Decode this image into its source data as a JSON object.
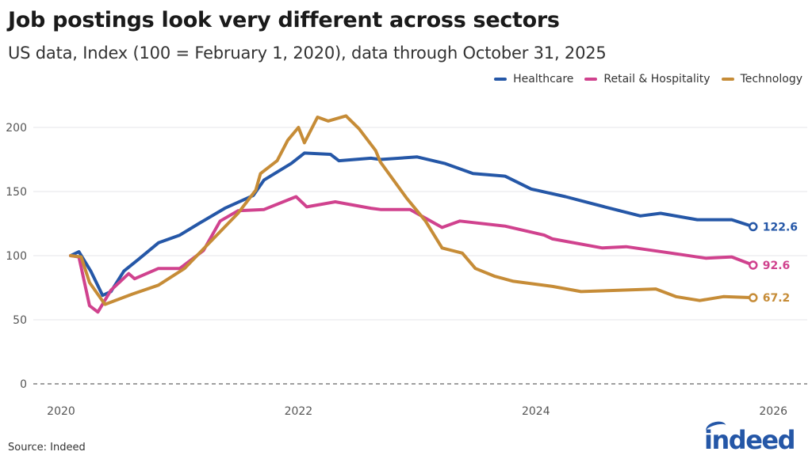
{
  "header": {
    "title": "Job postings look very different across sectors",
    "subtitle": "US data, Index (100 = February 1, 2020), data through October 31, 2025"
  },
  "footer": {
    "source": "Source: Indeed",
    "logo_text": "indeed"
  },
  "chart_data": {
    "type": "line",
    "title": "Job postings look very different across sectors",
    "subtitle": "US data, Index (100 = February 1, 2020), data through October 31, 2025",
    "xlabel": "",
    "ylabel": "",
    "xlim": [
      2020,
      2026
    ],
    "ylim": [
      0,
      215
    ],
    "x_ticks": [
      2020,
      2022,
      2024,
      2026
    ],
    "x_tick_labels": [
      "2020",
      "2022",
      "2024",
      "2026"
    ],
    "y_ticks": [
      0,
      50,
      100,
      150,
      200
    ],
    "y_tick_labels": [
      "0",
      "50",
      "100",
      "150",
      "200"
    ],
    "grid": true,
    "zero_line": "dashed",
    "legend_position": "top-right",
    "series": [
      {
        "name": "Healthcare",
        "color": "#2557a7",
        "end_label": "122.6",
        "points": [
          [
            2020.08,
            100
          ],
          [
            2020.15,
            103
          ],
          [
            2020.25,
            88
          ],
          [
            2020.35,
            69
          ],
          [
            2020.42,
            72
          ],
          [
            2020.53,
            88
          ],
          [
            2020.65,
            97
          ],
          [
            2020.82,
            110
          ],
          [
            2021.0,
            116
          ],
          [
            2021.16,
            125
          ],
          [
            2021.38,
            137
          ],
          [
            2021.62,
            147
          ],
          [
            2021.71,
            159
          ],
          [
            2021.94,
            172
          ],
          [
            2022.05,
            180
          ],
          [
            2022.27,
            179
          ],
          [
            2022.34,
            174
          ],
          [
            2022.61,
            176
          ],
          [
            2022.69,
            175
          ],
          [
            2023.0,
            177
          ],
          [
            2023.23,
            172
          ],
          [
            2023.47,
            164
          ],
          [
            2023.74,
            162
          ],
          [
            2023.96,
            152
          ],
          [
            2024.25,
            146
          ],
          [
            2024.58,
            138
          ],
          [
            2024.88,
            131
          ],
          [
            2025.05,
            133
          ],
          [
            2025.36,
            128
          ],
          [
            2025.65,
            128
          ],
          [
            2025.83,
            122.6
          ]
        ]
      },
      {
        "name": "Retail & Hospitality",
        "color": "#d0428e",
        "end_label": "92.6",
        "points": [
          [
            2020.08,
            100
          ],
          [
            2020.15,
            99
          ],
          [
            2020.24,
            61
          ],
          [
            2020.31,
            56
          ],
          [
            2020.42,
            73
          ],
          [
            2020.57,
            86
          ],
          [
            2020.62,
            82
          ],
          [
            2020.82,
            90
          ],
          [
            2021.0,
            90
          ],
          [
            2021.2,
            104
          ],
          [
            2021.34,
            127
          ],
          [
            2021.49,
            135
          ],
          [
            2021.71,
            136
          ],
          [
            2021.98,
            146
          ],
          [
            2022.07,
            138
          ],
          [
            2022.31,
            142
          ],
          [
            2022.61,
            137
          ],
          [
            2022.69,
            136
          ],
          [
            2022.94,
            136
          ],
          [
            2023.21,
            122
          ],
          [
            2023.36,
            127
          ],
          [
            2023.74,
            123
          ],
          [
            2024.07,
            116
          ],
          [
            2024.14,
            113
          ],
          [
            2024.56,
            106
          ],
          [
            2024.76,
            107
          ],
          [
            2025.14,
            102
          ],
          [
            2025.43,
            98
          ],
          [
            2025.65,
            99
          ],
          [
            2025.83,
            92.6
          ]
        ]
      },
      {
        "name": "Technology",
        "color": "#c68c37",
        "end_label": "67.2",
        "points": [
          [
            2020.08,
            100
          ],
          [
            2020.17,
            99
          ],
          [
            2020.24,
            79
          ],
          [
            2020.37,
            62
          ],
          [
            2020.6,
            70
          ],
          [
            2020.82,
            77
          ],
          [
            2021.04,
            90
          ],
          [
            2021.27,
            112
          ],
          [
            2021.49,
            133
          ],
          [
            2021.64,
            151
          ],
          [
            2021.68,
            164
          ],
          [
            2021.82,
            174
          ],
          [
            2021.91,
            190
          ],
          [
            2022.0,
            200
          ],
          [
            2022.05,
            188
          ],
          [
            2022.16,
            208
          ],
          [
            2022.25,
            205
          ],
          [
            2022.4,
            209
          ],
          [
            2022.51,
            199
          ],
          [
            2022.65,
            182
          ],
          [
            2022.69,
            173
          ],
          [
            2022.91,
            145
          ],
          [
            2023.07,
            127
          ],
          [
            2023.21,
            106
          ],
          [
            2023.38,
            102
          ],
          [
            2023.49,
            90
          ],
          [
            2023.65,
            84
          ],
          [
            2023.81,
            80
          ],
          [
            2024.14,
            76
          ],
          [
            2024.38,
            72
          ],
          [
            2024.7,
            73
          ],
          [
            2025.01,
            74
          ],
          [
            2025.18,
            68
          ],
          [
            2025.38,
            65
          ],
          [
            2025.58,
            68
          ],
          [
            2025.83,
            67.2
          ]
        ]
      }
    ]
  }
}
